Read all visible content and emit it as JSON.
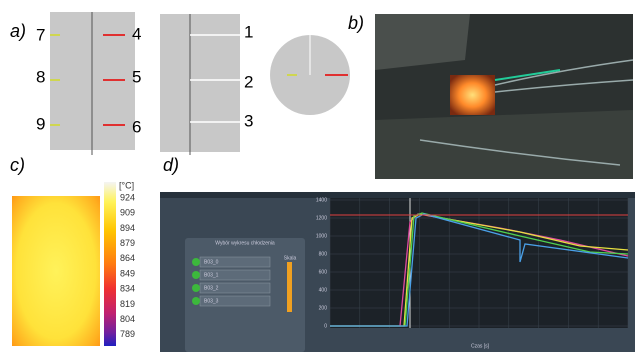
{
  "panel_a": {
    "label": "a)",
    "left_labels": [
      "7",
      "8",
      "9"
    ],
    "right_labels": [
      "4",
      "5",
      "6"
    ]
  },
  "panel_b": {
    "label": "b)"
  },
  "panel_c": {
    "label": "c)",
    "unit": "[°C]",
    "scale_labels": [
      "924",
      "909",
      "894",
      "879",
      "864",
      "849",
      "834",
      "819",
      "804",
      "789"
    ]
  },
  "panel_d": {
    "label": "d)",
    "right_labels": [
      "1",
      "2",
      "3"
    ]
  },
  "screenshot": {
    "panel_title": "Wybór wykresu chłodzenia",
    "items": [
      "B03_0",
      "B03_1",
      "B03_2",
      "B03_3"
    ],
    "side_title": "Skala",
    "y_ticks": [
      "0",
      "200",
      "400",
      "600",
      "800",
      "1000",
      "1200",
      "1400"
    ],
    "x_title": "Czas [s]"
  }
}
